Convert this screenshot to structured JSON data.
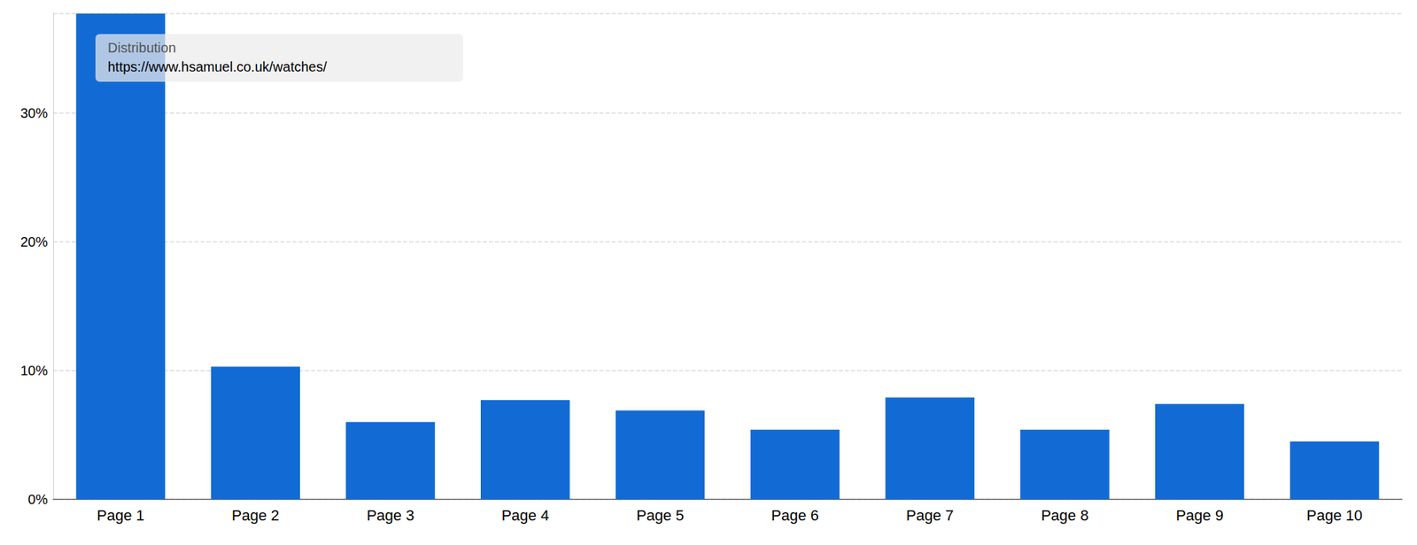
{
  "chart_data": {
    "type": "bar",
    "title": "Distribution",
    "subtitle": "https://www.hsamuel.co.uk/watches/",
    "categories": [
      "Page 1",
      "Page 2",
      "Page 3",
      "Page 4",
      "Page 5",
      "Page 6",
      "Page 7",
      "Page 8",
      "Page 9",
      "Page 10"
    ],
    "values": [
      37.7,
      10.3,
      6.0,
      7.7,
      6.9,
      5.4,
      7.9,
      5.4,
      7.4,
      4.5
    ],
    "color": "#126ad5",
    "ylim": [
      0,
      37.7
    ],
    "yticks": [
      {
        "value": 0,
        "label": "0%"
      },
      {
        "value": 10,
        "label": "10%"
      },
      {
        "value": 20,
        "label": "20%"
      },
      {
        "value": 30,
        "label": "30%"
      }
    ],
    "grid": true
  }
}
